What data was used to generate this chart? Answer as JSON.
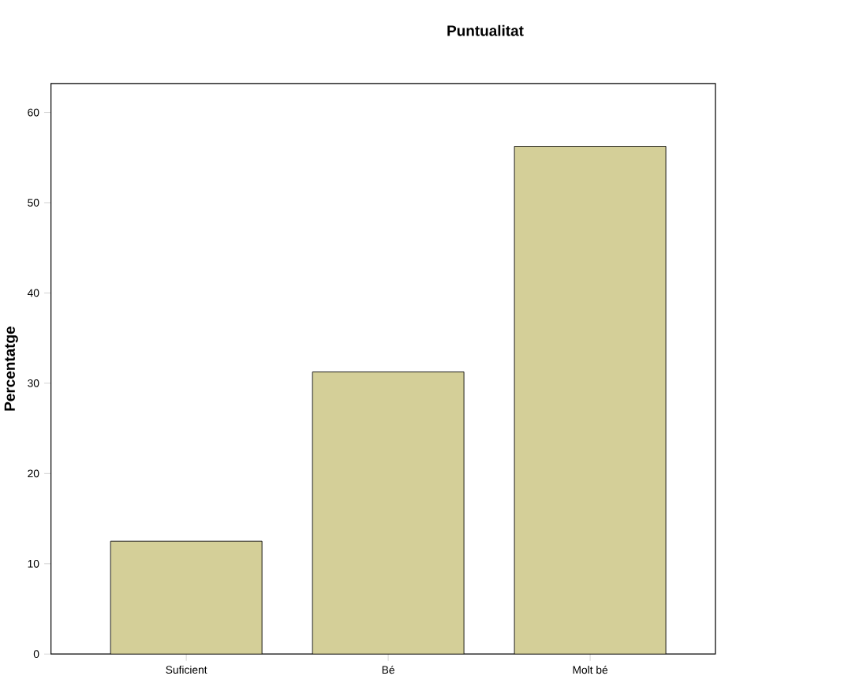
{
  "chart_data": {
    "type": "bar",
    "title": "Puntualitat",
    "ylabel": "Percentatge",
    "categories": [
      "Suficient",
      "Bé",
      "Molt bé"
    ],
    "values": [
      12.5,
      31.25,
      56.25
    ],
    "color": "#d4cf98",
    "ylim": [
      0,
      63.2
    ],
    "yticks": [
      0,
      10,
      20,
      30,
      40,
      50,
      60
    ]
  }
}
